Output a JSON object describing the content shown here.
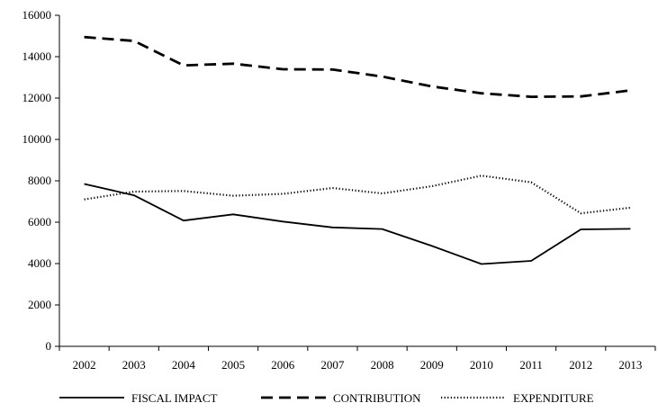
{
  "chart_data": {
    "type": "line",
    "title": "",
    "xlabel": "",
    "ylabel": "",
    "ylim": [
      0,
      16000
    ],
    "y_ticks": [
      0,
      2000,
      4000,
      6000,
      8000,
      10000,
      12000,
      14000,
      16000
    ],
    "y_tick_labels": [
      "0",
      "2000",
      "4000",
      "6000",
      "8000",
      "10000",
      "12000",
      "14000",
      "16000"
    ],
    "categories": [
      "2002",
      "2003",
      "2004",
      "2005",
      "2006",
      "2007",
      "2008",
      "2009",
      "2010",
      "2011",
      "2012",
      "2013"
    ],
    "grid": false,
    "legend_position": "bottom",
    "series": [
      {
        "name": "FISCAL IMPACT",
        "style": "solid",
        "color": "#000000",
        "values": [
          7850,
          7300,
          6080,
          6380,
          6030,
          5750,
          5670,
          4850,
          3980,
          4130,
          5650,
          5680
        ]
      },
      {
        "name": "CONTRIBUTION",
        "style": "dashed",
        "color": "#000000",
        "values": [
          14950,
          14760,
          13580,
          13660,
          13390,
          13380,
          13040,
          12560,
          12230,
          12060,
          12080,
          12370
        ]
      },
      {
        "name": "EXPENDITURE",
        "style": "dotted",
        "color": "#000000",
        "values": [
          7100,
          7480,
          7510,
          7280,
          7370,
          7650,
          7390,
          7740,
          8250,
          7930,
          6430,
          6700
        ]
      }
    ]
  }
}
